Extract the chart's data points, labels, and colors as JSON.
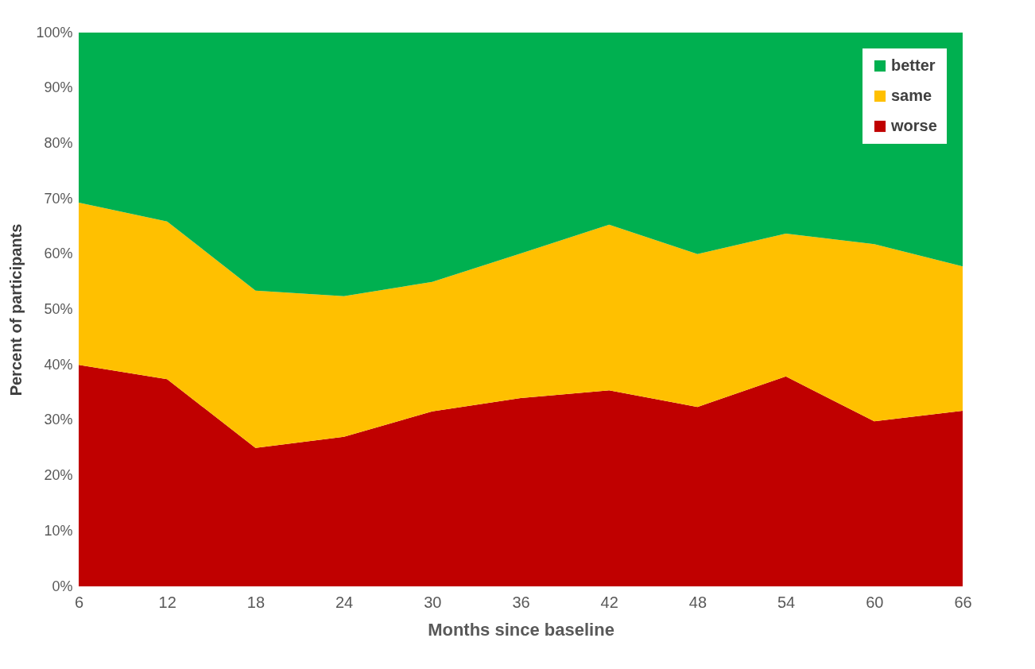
{
  "chart_data": {
    "type": "area",
    "stacked": true,
    "xlabel": "Months since baseline",
    "ylabel": "Percent of participants",
    "x": [
      6,
      12,
      18,
      24,
      30,
      36,
      42,
      48,
      54,
      60,
      66
    ],
    "xlim": [
      6,
      66
    ],
    "xticks": [
      6,
      12,
      18,
      24,
      30,
      36,
      42,
      48,
      54,
      60,
      66
    ],
    "ylim": [
      0,
      100
    ],
    "yticks": [
      {
        "value": 0,
        "label": "0%"
      },
      {
        "value": 10,
        "label": "10%"
      },
      {
        "value": 20,
        "label": "20%"
      },
      {
        "value": 30,
        "label": "30%"
      },
      {
        "value": 40,
        "label": "40%"
      },
      {
        "value": 50,
        "label": "50%"
      },
      {
        "value": 60,
        "label": "60%"
      },
      {
        "value": 70,
        "label": "70%"
      },
      {
        "value": 80,
        "label": "80%"
      },
      {
        "value": 90,
        "label": "90%"
      },
      {
        "value": 100,
        "label": "100%"
      }
    ],
    "grid": false,
    "legend": "top right",
    "series": [
      {
        "name": "worse",
        "color": "#c00000",
        "values": [
          40,
          37.4,
          25,
          27,
          31.6,
          34,
          35.4,
          32.4,
          37.9,
          29.8,
          31.7
        ]
      },
      {
        "name": "same",
        "color": "#ffc000",
        "values": [
          29.3,
          28.5,
          28.4,
          25.4,
          23.4,
          26.1,
          29.9,
          27.6,
          25.8,
          32,
          26.1
        ]
      },
      {
        "name": "better",
        "color": "#00b050",
        "values": [
          30.7,
          34.1,
          46.6,
          47.6,
          45,
          39.9,
          34.7,
          40,
          36.3,
          38.2,
          42.2
        ]
      }
    ]
  }
}
